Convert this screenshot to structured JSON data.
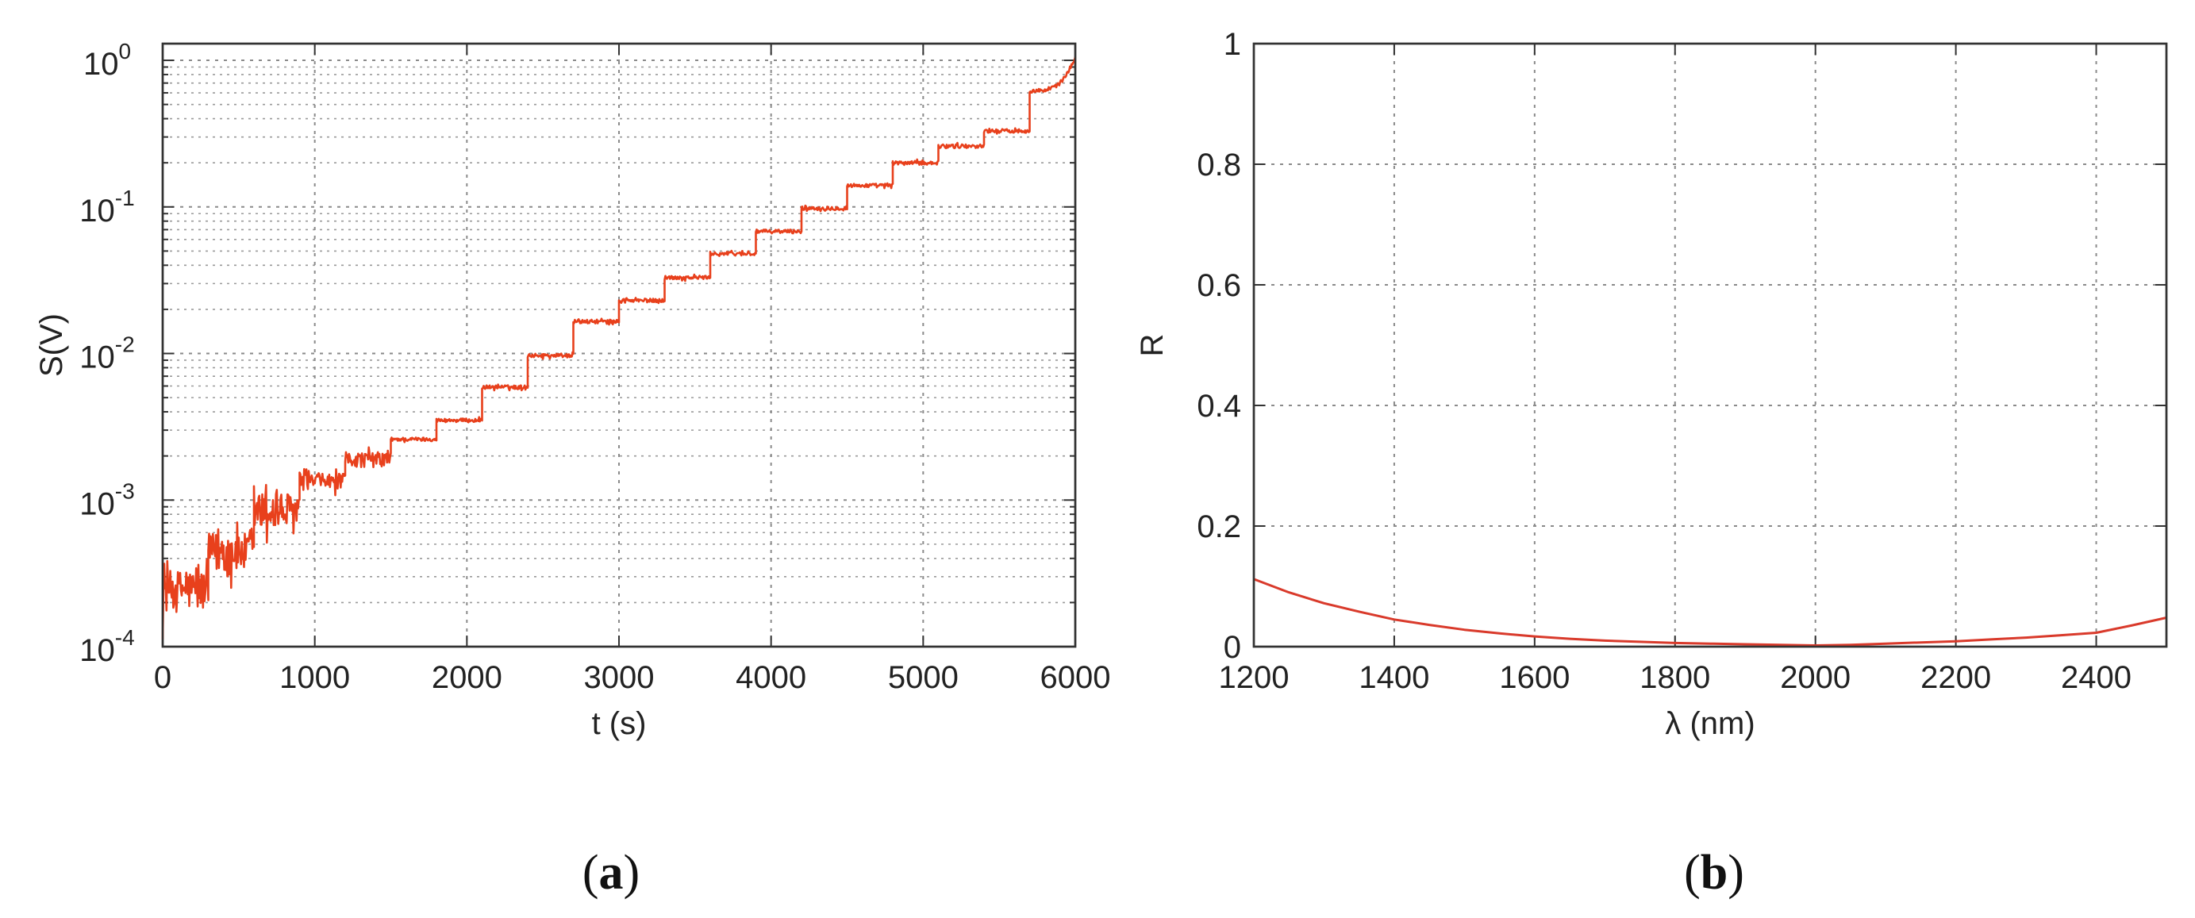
{
  "chart_data": [
    {
      "id": "a",
      "type": "line",
      "panel_label": "(a)",
      "panel_letter": "a",
      "xlabel": "t (s)",
      "ylabel": "S(V)",
      "xlim": [
        0,
        6000
      ],
      "ylim": [
        0.0001,
        1.3
      ],
      "yscale": "log",
      "grid": "on",
      "x_ticks": [
        "0",
        "1000",
        "2000",
        "3000",
        "4000",
        "5000",
        "6000"
      ],
      "y_ticks": [
        {
          "base": "10",
          "exp": "-4"
        },
        {
          "base": "10",
          "exp": "-3"
        },
        {
          "base": "10",
          "exp": "-2"
        },
        {
          "base": "10",
          "exp": "-1"
        },
        {
          "base": "10",
          "exp": "0"
        }
      ],
      "series": [
        {
          "color": "#e8401c",
          "step_duration_s": 300,
          "levels_V": [
            0.00025,
            0.00045,
            0.00085,
            0.00135,
            0.0019,
            0.0026,
            0.0035,
            0.0059,
            0.0097,
            0.0165,
            0.023,
            0.033,
            0.048,
            0.068,
            0.098,
            0.14,
            0.2,
            0.26,
            0.33,
            0.62
          ],
          "final_value_V": 1.05
        }
      ]
    },
    {
      "id": "b",
      "type": "line",
      "panel_label": "(b)",
      "panel_letter": "b",
      "xlabel": "λ (nm)",
      "ylabel": "R",
      "xlim": [
        1200,
        2500
      ],
      "ylim": [
        0,
        1
      ],
      "grid": "on",
      "x_ticks": [
        "1200",
        "1400",
        "1600",
        "1800",
        "2000",
        "2200",
        "2400"
      ],
      "y_ticks": [
        "0",
        "0.2",
        "0.4",
        "0.6",
        "0.8",
        "1"
      ],
      "series": [
        {
          "color": "#d93a2b",
          "x": [
            1200,
            1250,
            1300,
            1350,
            1400,
            1450,
            1500,
            1550,
            1600,
            1650,
            1700,
            1750,
            1800,
            1850,
            1900,
            1950,
            2000,
            2050,
            2100,
            2150,
            2200,
            2250,
            2300,
            2350,
            2400,
            2450,
            2500
          ],
          "y": [
            0.112,
            0.09,
            0.072,
            0.058,
            0.045,
            0.036,
            0.028,
            0.022,
            0.017,
            0.013,
            0.01,
            0.008,
            0.006,
            0.005,
            0.004,
            0.003,
            0.002,
            0.003,
            0.005,
            0.007,
            0.009,
            0.012,
            0.015,
            0.019,
            0.023,
            0.035,
            0.048
          ]
        }
      ]
    }
  ]
}
